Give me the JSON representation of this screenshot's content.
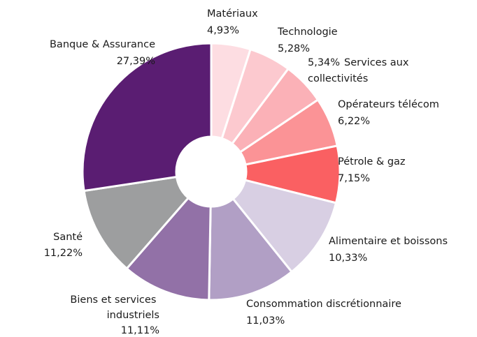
{
  "chart_data": {
    "type": "pie",
    "categories": [
      "Matériaux",
      "Technologie",
      "Services aux collectivités",
      "Opérateurs télécom",
      "Pétrole & gaz",
      "Alimentaire et boissons",
      "Consommation discrétionnaire",
      "Biens et services industriels",
      "Santé",
      "Banque & Assurance"
    ],
    "values": [
      4.93,
      5.28,
      5.34,
      6.22,
      7.15,
      10.33,
      11.03,
      11.11,
      11.22,
      27.39
    ],
    "value_labels": [
      "4,93%",
      "5,28%",
      "5,34%",
      "6,22%",
      "7,15%",
      "10,33%",
      "11,03%",
      "11,11%",
      "11,22%",
      "27,39%"
    ],
    "colors": [
      "#fddde2",
      "#fcc9cf",
      "#fbb1b7",
      "#fb9396",
      "#fa6062",
      "#d8cfe3",
      "#b19fc5",
      "#9271a7",
      "#9d9e9f",
      "#5a1d72"
    ],
    "donut": true
  }
}
